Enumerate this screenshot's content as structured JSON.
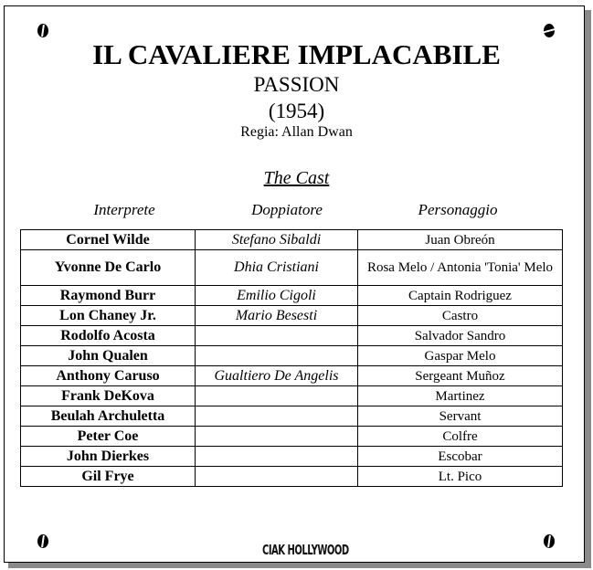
{
  "title": "IL CAVALIERE IMPLACABILE",
  "original_title": "PASSION",
  "year": "(1954)",
  "director": "Regia: Allan Dwan",
  "section_title": "The Cast",
  "columns": [
    "Interprete",
    "Doppiatore",
    "Personaggio"
  ],
  "rows": [
    {
      "actor": "Cornel Wilde",
      "dubber": "Stefano Sibaldi",
      "character": "Juan Obreón"
    },
    {
      "actor": "Yvonne De Carlo",
      "dubber": "Dhia Cristiani",
      "character": "Rosa Melo / Antonia 'Tonia' Melo"
    },
    {
      "actor": "Raymond Burr",
      "dubber": "Emilio Cigoli",
      "character": "Captain Rodriguez"
    },
    {
      "actor": "Lon Chaney Jr.",
      "dubber": "Mario Besesti",
      "character": "Castro"
    },
    {
      "actor": "Rodolfo Acosta",
      "dubber": "",
      "character": "Salvador Sandro"
    },
    {
      "actor": "John Qualen",
      "dubber": "",
      "character": "Gaspar Melo"
    },
    {
      "actor": "Anthony Caruso",
      "dubber": "Gualtiero De Angelis",
      "character": "Sergeant Muñoz"
    },
    {
      "actor": "Frank DeKova",
      "dubber": "",
      "character": "Martinez"
    },
    {
      "actor": "Beulah Archuletta",
      "dubber": "",
      "character": "Servant"
    },
    {
      "actor": "Peter Coe",
      "dubber": "",
      "character": "Colfre"
    },
    {
      "actor": "John Dierkes",
      "dubber": "",
      "character": "Escobar"
    },
    {
      "actor": "Gil Frye",
      "dubber": "",
      "character": "Lt. Pico"
    }
  ],
  "logo": "CIAK HOLLYWOOD"
}
